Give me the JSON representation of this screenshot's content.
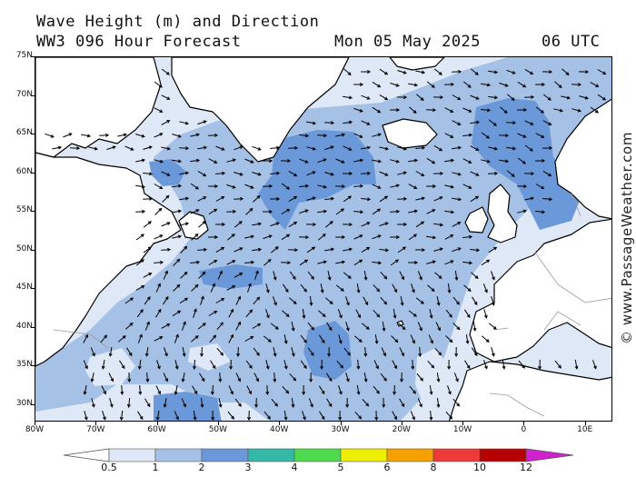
{
  "header": {
    "title_line1": "Wave Height (m) and Direction",
    "title_line2": "WW3 096 Hour Forecast",
    "date": "Mon 05 May 2025",
    "time": "06 UTC"
  },
  "axes": {
    "lat_labels": [
      "75N",
      "70N",
      "65N",
      "60N",
      "55N",
      "50N",
      "45N",
      "40N",
      "35N",
      "30N"
    ],
    "lon_labels": [
      "80W",
      "70W",
      "60W",
      "50W",
      "40W",
      "30W",
      "20W",
      "10W",
      "0",
      "10E"
    ]
  },
  "watermark": "© www.PassageWeather.com",
  "colorbar": {
    "labels": [
      "0.5",
      "1",
      "2",
      "3",
      "4",
      "5",
      "6",
      "8",
      "10",
      "12"
    ],
    "colors": [
      "#dfe8f6",
      "#a6c1e6",
      "#6b98d8",
      "#35b8a6",
      "#4fd94f",
      "#eeee00",
      "#f6a000",
      "#ee3a3a",
      "#b80000",
      "#d020d0"
    ]
  },
  "map_colors": {
    "ocean_low": "#dfe8f6",
    "ocean_mid": "#a6c1e6",
    "ocean_high": "#6b98d8",
    "land": "#ffffff",
    "coast": "#000000",
    "border": "#9a9a9a"
  },
  "dominant_wave_direction": "east"
}
